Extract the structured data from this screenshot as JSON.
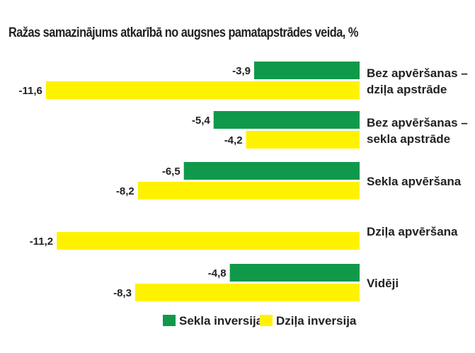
{
  "chart_data": {
    "type": "bar",
    "orientation": "horizontal",
    "title": "Ražas samazinājums atkarībā no augsnes pamatapstrādes veida, %",
    "categories": [
      [
        "Bez apvēršanas –",
        "dziļa apstrāde"
      ],
      [
        "Bez apvēršanas –",
        "sekla apstrāde"
      ],
      [
        "Sekla apvēršana"
      ],
      [
        "Dziļa apvēršana"
      ],
      [
        "Vidēji"
      ]
    ],
    "series": [
      {
        "name": "Sekla inversija",
        "color": "#10994a",
        "values": [
          -3.9,
          -5.4,
          -6.5,
          null,
          -4.8
        ],
        "labels": [
          "-3,9",
          "-5,4",
          "-6,5",
          "",
          "-4,8"
        ]
      },
      {
        "name": "Dziļa inversija",
        "color": "#fff200",
        "values": [
          -11.6,
          -4.2,
          -8.2,
          -11.2,
          -8.3
        ],
        "labels": [
          "-11,6",
          "-4,2",
          "-8,2",
          "-11,2",
          "-8,3"
        ]
      }
    ],
    "xlim": [
      -12,
      0
    ],
    "grid": false,
    "legend": "bottom",
    "data_labels": true
  }
}
